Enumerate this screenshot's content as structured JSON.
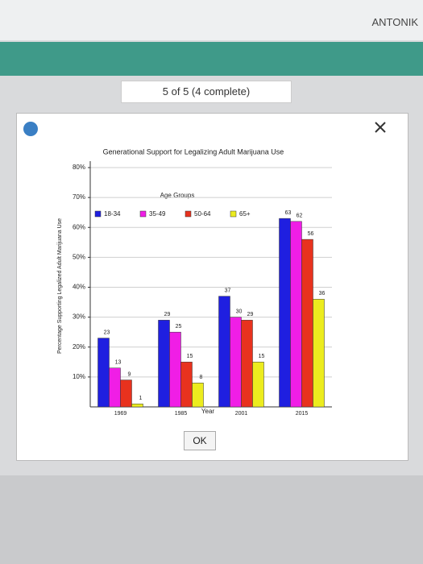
{
  "header": {
    "user": "ANTONIK",
    "progress": "5 of 5 (4 complete)"
  },
  "dialog": {
    "button": "OK"
  },
  "chart_data": {
    "type": "bar",
    "title": "Generational Support for Legalizing Adult Marijuana Use",
    "x_label": "Year",
    "y_label": "Percentage Supporting Legalized Adult Marijuana Use",
    "legend_title": "Age Groups",
    "categories": [
      "1969",
      "1985",
      "2001",
      "2015"
    ],
    "series": [
      {
        "name": "18-34",
        "color": "#1f1fe0",
        "values": [
          23,
          29,
          37,
          63
        ]
      },
      {
        "name": "35-49",
        "color": "#f01ee6",
        "values": [
          13,
          25,
          30,
          62
        ]
      },
      {
        "name": "50-64",
        "color": "#e8321e",
        "values": [
          9,
          15,
          29,
          56
        ]
      },
      {
        "name": "65+",
        "color": "#ecec1e",
        "values": [
          1,
          8,
          15,
          36
        ]
      }
    ],
    "ylim": [
      0,
      80
    ],
    "yticks": [
      {
        "value": 10,
        "label": "10%"
      },
      {
        "value": 20,
        "label": "20%"
      },
      {
        "value": 30,
        "label": "30%"
      },
      {
        "value": 40,
        "label": "40%"
      },
      {
        "value": 50,
        "label": "50%"
      },
      {
        "value": 60,
        "label": "60%"
      },
      {
        "value": 70,
        "label": "70%"
      },
      {
        "value": 80,
        "label": "80%"
      }
    ],
    "grid": true
  }
}
